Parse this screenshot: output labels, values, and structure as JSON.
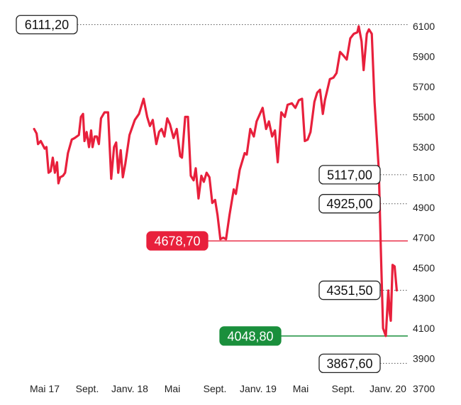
{
  "chart_data": {
    "type": "line",
    "title": "",
    "xlabel": "",
    "ylabel": "",
    "ylim": [
      3700,
      6130
    ],
    "x_ticks": [
      "Mai 17",
      "Sept.",
      "Janv. 18",
      "Mai",
      "Sept.",
      "Janv. 19",
      "Mai",
      "Sept.",
      "Janv. 20"
    ],
    "y_ticks": [
      "6100",
      "5900",
      "5700",
      "5500",
      "5300",
      "5100",
      "4900",
      "4700",
      "4500",
      "4300",
      "4100",
      "3900",
      "3700"
    ],
    "grid": false,
    "legend": "none",
    "series": [
      {
        "color": "#e8203c",
        "points": [
          [
            "2017-04-01",
            5420
          ],
          [
            "2017-04-08",
            5390
          ],
          [
            "2017-04-12",
            5320
          ],
          [
            "2017-04-20",
            5340
          ],
          [
            "2017-05-01",
            5290
          ],
          [
            "2017-05-06",
            5300
          ],
          [
            "2017-05-12",
            5130
          ],
          [
            "2017-05-18",
            5140
          ],
          [
            "2017-05-24",
            5230
          ],
          [
            "2017-05-30",
            5130
          ],
          [
            "2017-06-05",
            5200
          ],
          [
            "2017-06-09",
            5060
          ],
          [
            "2017-06-14",
            5100
          ],
          [
            "2017-06-22",
            5110
          ],
          [
            "2017-06-28",
            5130
          ],
          [
            "2017-07-06",
            5260
          ],
          [
            "2017-07-17",
            5350
          ],
          [
            "2017-07-25",
            5360
          ],
          [
            "2017-08-06",
            5380
          ],
          [
            "2017-08-12",
            5500
          ],
          [
            "2017-08-18",
            5520
          ],
          [
            "2017-08-22",
            5340
          ],
          [
            "2017-08-28",
            5400
          ],
          [
            "2017-09-04",
            5300
          ],
          [
            "2017-09-10",
            5410
          ],
          [
            "2017-09-14",
            5300
          ],
          [
            "2017-09-20",
            5370
          ],
          [
            "2017-09-26",
            5370
          ],
          [
            "2017-10-02",
            5320
          ],
          [
            "2017-10-08",
            5490
          ],
          [
            "2017-10-18",
            5530
          ],
          [
            "2017-10-28",
            5530
          ],
          [
            "2017-11-06",
            5090
          ],
          [
            "2017-11-14",
            5300
          ],
          [
            "2017-11-20",
            5330
          ],
          [
            "2017-11-26",
            5130
          ],
          [
            "2017-12-03",
            5280
          ],
          [
            "2017-12-09",
            5100
          ],
          [
            "2017-12-16",
            5190
          ],
          [
            "2017-12-28",
            5380
          ],
          [
            "2018-01-12",
            5480
          ],
          [
            "2018-01-24",
            5520
          ],
          [
            "2018-02-06",
            5620
          ],
          [
            "2018-02-16",
            5500
          ],
          [
            "2018-02-24",
            5440
          ],
          [
            "2018-03-04",
            5480
          ],
          [
            "2018-03-14",
            5320
          ],
          [
            "2018-03-22",
            5400
          ],
          [
            "2018-03-29",
            5420
          ],
          [
            "2018-04-06",
            5370
          ],
          [
            "2018-04-14",
            5490
          ],
          [
            "2018-04-22",
            5450
          ],
          [
            "2018-05-02",
            5360
          ],
          [
            "2018-05-11",
            5420
          ],
          [
            "2018-05-21",
            5240
          ],
          [
            "2018-05-26",
            5230
          ],
          [
            "2018-06-04",
            5500
          ],
          [
            "2018-06-12",
            5500
          ],
          [
            "2018-06-20",
            5110
          ],
          [
            "2018-06-28",
            5080
          ],
          [
            "2018-07-04",
            5160
          ],
          [
            "2018-07-12",
            4960
          ],
          [
            "2018-07-20",
            5110
          ],
          [
            "2018-07-27",
            5070
          ],
          [
            "2018-08-04",
            5130
          ],
          [
            "2018-08-12",
            5100
          ],
          [
            "2018-08-20",
            4930
          ],
          [
            "2018-08-28",
            4950
          ],
          [
            "2018-09-04",
            4850
          ],
          [
            "2018-09-12",
            4690
          ],
          [
            "2018-09-20",
            4700
          ],
          [
            "2018-09-28",
            4690
          ],
          [
            "2018-10-08",
            4850
          ],
          [
            "2018-10-20",
            5020
          ],
          [
            "2018-10-26",
            4990
          ],
          [
            "2018-11-06",
            5150
          ],
          [
            "2018-11-20",
            5260
          ],
          [
            "2018-11-26",
            5250
          ],
          [
            "2018-12-06",
            5420
          ],
          [
            "2018-12-16",
            5370
          ],
          [
            "2018-12-24",
            5470
          ],
          [
            "2019-01-10",
            5560
          ],
          [
            "2019-01-20",
            5420
          ],
          [
            "2019-01-28",
            5470
          ],
          [
            "2019-02-06",
            5370
          ],
          [
            "2019-02-14",
            5410
          ],
          [
            "2019-02-22",
            5200
          ],
          [
            "2019-03-04",
            5530
          ],
          [
            "2019-03-14",
            5500
          ],
          [
            "2019-03-22",
            5580
          ],
          [
            "2019-04-03",
            5590
          ],
          [
            "2019-04-13",
            5560
          ],
          [
            "2019-04-23",
            5610
          ],
          [
            "2019-05-02",
            5620
          ],
          [
            "2019-05-10",
            5340
          ],
          [
            "2019-05-18",
            5350
          ],
          [
            "2019-05-26",
            5400
          ],
          [
            "2019-06-06",
            5600
          ],
          [
            "2019-06-14",
            5660
          ],
          [
            "2019-06-22",
            5680
          ],
          [
            "2019-06-30",
            5520
          ],
          [
            "2019-07-06",
            5610
          ],
          [
            "2019-07-20",
            5750
          ],
          [
            "2019-07-30",
            5760
          ],
          [
            "2019-08-08",
            5790
          ],
          [
            "2019-08-18",
            5930
          ],
          [
            "2019-08-26",
            5910
          ],
          [
            "2019-09-06",
            5880
          ],
          [
            "2019-09-16",
            6020
          ],
          [
            "2019-09-26",
            6050
          ],
          [
            "2019-10-06",
            6060
          ],
          [
            "2019-10-10",
            6100
          ],
          [
            "2019-10-18",
            6000
          ],
          [
            "2019-10-24",
            5810
          ],
          [
            "2019-11-02",
            6050
          ],
          [
            "2019-11-08",
            6080
          ],
          [
            "2019-11-16",
            6050
          ],
          [
            "2019-11-24",
            5600
          ],
          [
            "2019-12-06",
            5150
          ],
          [
            "2019-12-12",
            4600
          ],
          [
            "2019-12-18",
            4100
          ],
          [
            "2019-12-26",
            4049
          ],
          [
            "2020-01-02",
            4350
          ],
          [
            "2020-01-06",
            4200
          ],
          [
            "2020-01-09",
            4150
          ],
          [
            "2020-01-14",
            4520
          ],
          [
            "2020-01-20",
            4510
          ],
          [
            "2020-01-26",
            4351.5
          ]
        ]
      }
    ],
    "annotations": [
      {
        "text": "6111,20",
        "value": 6111.2,
        "style": "outlined",
        "color": "#222222",
        "line": "dotted",
        "x_from": "2017-03-01"
      },
      {
        "text": "5117,00",
        "value": 5117.0,
        "style": "outlined",
        "color": "#222222",
        "line": "dotted",
        "x_from": "2019-11-16"
      },
      {
        "text": "4925,00",
        "value": 4925.0,
        "style": "outlined",
        "color": "#222222",
        "line": "dotted",
        "x_from": "2019-11-16"
      },
      {
        "text": "4678,70",
        "value": 4678.7,
        "style": "filled",
        "color": "#e8203c",
        "line": "solid",
        "x_from": "2018-09-01"
      },
      {
        "text": "4351,50",
        "value": 4351.5,
        "style": "outlined",
        "color": "#222222",
        "line": "dotted",
        "x_from": "2019-11-16"
      },
      {
        "text": "4048,80",
        "value": 4048.8,
        "style": "filled",
        "color": "#1a8f3c",
        "line": "solid",
        "x_from": "2019-09-01"
      },
      {
        "text": "3867,60",
        "value": 3867.6,
        "style": "outlined",
        "color": "#222222",
        "line": "dotted",
        "x_from": "2019-11-16"
      }
    ]
  }
}
